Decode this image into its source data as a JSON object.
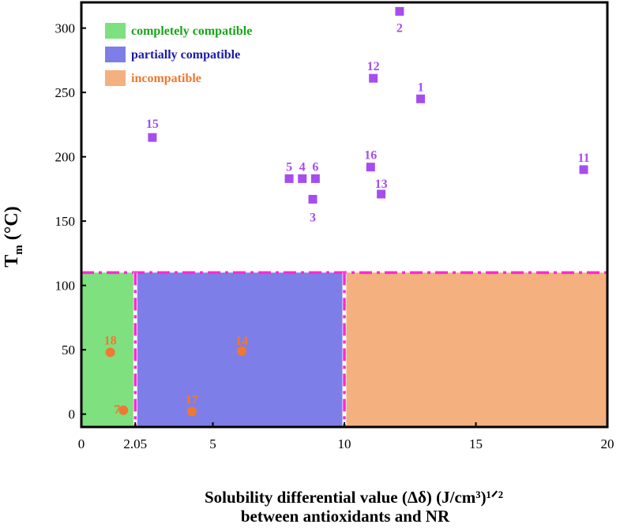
{
  "chart_data": {
    "type": "scatter",
    "xlim": [
      0,
      20
    ],
    "ylim": [
      -10,
      320
    ],
    "xticks": [
      {
        "value": 0,
        "label": "0"
      },
      {
        "value": 2.05,
        "label": "2.05"
      },
      {
        "value": 5,
        "label": "5"
      },
      {
        "value": 10,
        "label": "10"
      },
      {
        "value": 15,
        "label": "15"
      },
      {
        "value": 20,
        "label": "20"
      }
    ],
    "yticks": [
      {
        "value": 0,
        "label": "0"
      },
      {
        "value": 50,
        "label": "50"
      },
      {
        "value": 100,
        "label": "100"
      },
      {
        "value": 150,
        "label": "150"
      },
      {
        "value": 200,
        "label": "200"
      },
      {
        "value": 250,
        "label": "250"
      },
      {
        "value": 300,
        "label": "300"
      }
    ],
    "ylabel": "T",
    "ylabel_sub": "m",
    "ylabel_unit": "(°C)",
    "xlabel_line1": "Solubility differential value (Δδ)  (J/cm³)¹ᐟ²",
    "xlabel_line2": "between antioxidants and NR",
    "threshold_y": 110,
    "region_boundaries_x": [
      2.05,
      10
    ],
    "regions": [
      {
        "name": "completely compatible",
        "x": [
          0,
          2.05
        ],
        "color": "#7ee07e"
      },
      {
        "name": "partially compatible",
        "x": [
          2.05,
          10
        ],
        "color": "#7e7ee8"
      },
      {
        "name": "incompatible",
        "x": [
          10,
          20
        ],
        "color": "#f4b07e"
      }
    ],
    "legend": [
      {
        "label": "completely compatible",
        "swatch": "#7ee07e",
        "text_color": "#1aa31a"
      },
      {
        "label": "partially compatible",
        "swatch": "#7e7ee8",
        "text_color": "#1a1aa8"
      },
      {
        "label": "incompatible",
        "swatch": "#f4b07e",
        "text_color": "#f07830"
      }
    ],
    "series": [
      {
        "marker": "square",
        "color": "#a64df0",
        "points": [
          {
            "label": "1",
            "x": 12.9,
            "y": 245
          },
          {
            "label": "2",
            "x": 12.1,
            "y": 313
          },
          {
            "label": "3",
            "x": 8.8,
            "y": 167
          },
          {
            "label": "4",
            "x": 8.4,
            "y": 183
          },
          {
            "label": "5",
            "x": 7.9,
            "y": 183
          },
          {
            "label": "6",
            "x": 8.9,
            "y": 183
          },
          {
            "label": "11",
            "x": 19.1,
            "y": 190
          },
          {
            "label": "12",
            "x": 11.1,
            "y": 261
          },
          {
            "label": "13",
            "x": 11.4,
            "y": 171
          },
          {
            "label": "15",
            "x": 2.7,
            "y": 215
          },
          {
            "label": "16",
            "x": 11.0,
            "y": 192
          }
        ]
      },
      {
        "marker": "circle",
        "color": "#f07830",
        "points": [
          {
            "label": "7",
            "x": 1.6,
            "y": 3
          },
          {
            "label": "14",
            "x": 6.1,
            "y": 49
          },
          {
            "label": "17",
            "x": 4.2,
            "y": 2
          },
          {
            "label": "18",
            "x": 1.1,
            "y": 48
          }
        ]
      }
    ]
  }
}
